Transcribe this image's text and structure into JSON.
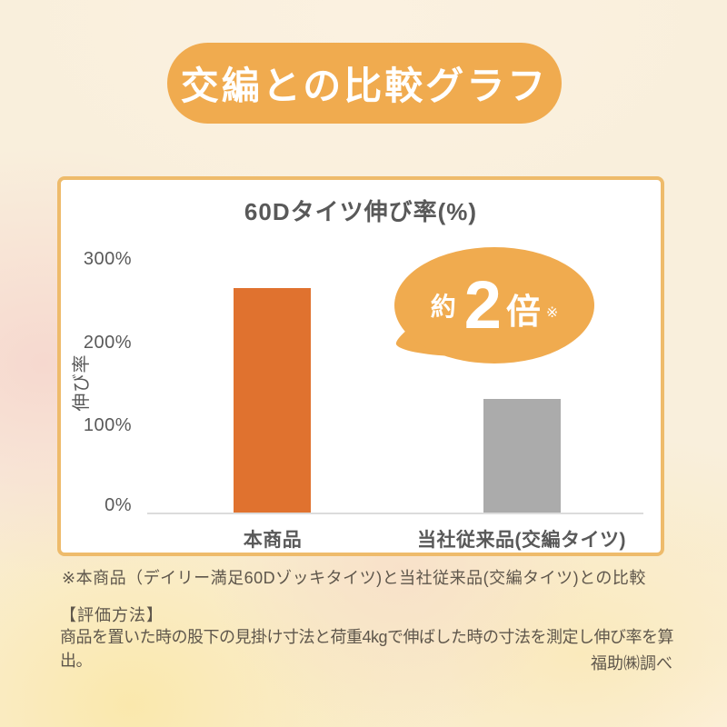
{
  "header": {
    "title": "交編との比較グラフ"
  },
  "chart_data": {
    "type": "bar",
    "title": "60Dタイツ伸び率(%)",
    "ylabel": "伸び率",
    "xlabel": "",
    "categories": [
      "本商品",
      "当社従来品(交編タイツ)"
    ],
    "values": [
      270,
      137
    ],
    "unit": "%",
    "yticks": [
      "300%",
      "200%",
      "100%",
      "0%"
    ],
    "ylim": [
      0,
      300
    ],
    "grid": "off",
    "bar_colors": [
      "#e0722f",
      "#ababab"
    ],
    "annotation": {
      "prefix": "約",
      "number": "2",
      "suffix": "倍",
      "note_mark": "※"
    }
  },
  "footnotes": {
    "comparison_note": "※本商品（デイリー満足60Dゾッキタイツ)と当社従来品(交編タイツ)との比較",
    "method_heading": "【評価方法】",
    "method_body": "商品を置いた時の股下の見掛け寸法と荷重4kgで伸ばした時の寸法を測定し伸び率を算出。",
    "source": "福助㈱調べ"
  },
  "colors": {
    "accent_orange": "#f0ab4f",
    "bar_orange": "#e0722f",
    "bar_gray": "#ababab",
    "panel_border": "#eebb6b",
    "panel_background": "#ffffff",
    "background_cream": "#f9efdc",
    "chart_text": "#595959",
    "footnote_text": "#5e564b",
    "baseline_gray": "#dcdcdc"
  }
}
